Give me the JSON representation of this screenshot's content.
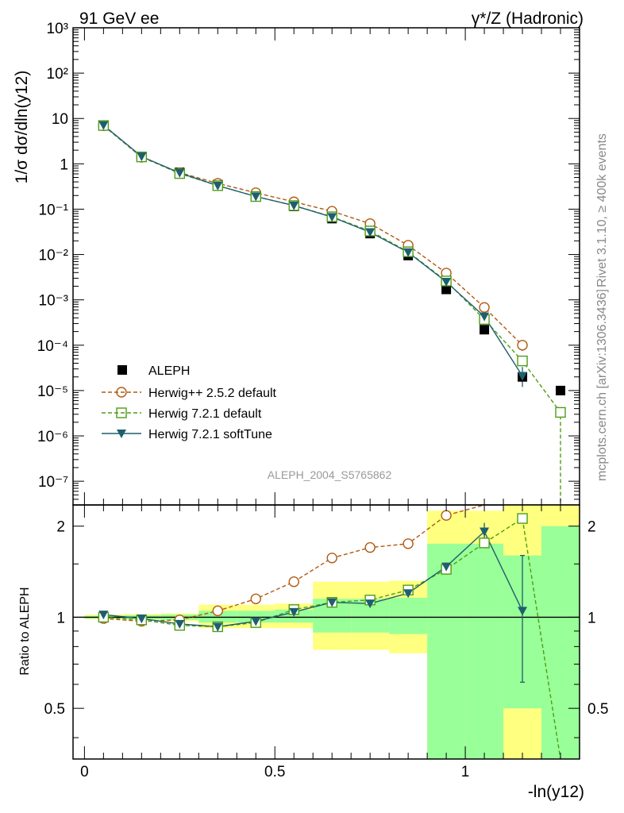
{
  "header": {
    "left": "91 GeV ee",
    "right": "γ*/Z (Hadronic)"
  },
  "side": {
    "rivet": "Rivet 3.1.10, ≥ 400k events",
    "mcplots": "mcplots.cern.ch [arXiv:1306.3436]"
  },
  "watermark": "ALEPH_2004_S5765862",
  "axes": {
    "ylabel_main": "1/σ  dσ/dln(y12)",
    "ylabel_ratio": "Ratio to ALEPH",
    "xlabel": "-ln(y12)",
    "main_ticks": [
      "10⁻⁷",
      "10⁻⁶",
      "10⁻⁵",
      "10⁻⁴",
      "10⁻³",
      "10⁻²",
      "10⁻¹",
      "1",
      "10",
      "10²",
      "10³"
    ],
    "ratio_ticks": [
      "0.5",
      "1",
      "2"
    ],
    "x_ticks": [
      "0",
      "0.5",
      "1"
    ]
  },
  "legend": {
    "position": "middle-left",
    "entries": [
      "ALEPH",
      "Herwig++ 2.5.2 default",
      "Herwig 7.2.1 default",
      "Herwig 7.2.1 softTune"
    ]
  },
  "colors": {
    "data": "#000000",
    "herwigpp": "#b05a12",
    "herwig7": "#4e9d16",
    "softtune": "#1e5e6e",
    "band_inner": "#99ff99",
    "band_outer": "#ffff80"
  },
  "chart_data": [
    {
      "type": "scatter",
      "scale": "log",
      "xlim": [
        -0.03,
        1.3
      ],
      "ylim": [
        3e-08,
        1000
      ],
      "x": [
        0.05,
        0.15,
        0.25,
        0.35,
        0.45,
        0.55,
        0.65,
        0.75,
        0.85,
        0.95,
        1.05,
        1.15,
        1.25
      ],
      "series": [
        {
          "name": "ALEPH",
          "values": [
            7.0,
            1.45,
            0.65,
            0.35,
            0.19,
            0.115,
            0.062,
            0.029,
            0.0095,
            0.0017,
            0.00022,
            2e-05,
            1e-05
          ]
        },
        {
          "name": "Herwig++ 2.5.2 default",
          "values": [
            6.9,
            1.4,
            0.64,
            0.37,
            0.23,
            0.145,
            0.09,
            0.048,
            0.016,
            0.0039,
            0.00068,
            0.0001,
            null
          ]
        },
        {
          "name": "Herwig 7.2.1 default",
          "values": [
            7.0,
            1.42,
            0.61,
            0.33,
            0.19,
            0.12,
            0.068,
            0.033,
            0.0115,
            0.0026,
            0.00037,
            4.5e-05,
            3.3e-06
          ]
        },
        {
          "name": "Herwig 7.2.1 softTune",
          "values": [
            7.1,
            1.45,
            0.63,
            0.33,
            0.19,
            0.12,
            0.067,
            0.031,
            0.0112,
            0.0025,
            0.00043,
            2.1e-05,
            null
          ]
        }
      ]
    },
    {
      "type": "scatter",
      "scale": "log",
      "xlim": [
        -0.03,
        1.3
      ],
      "ylim": [
        0.34,
        2.35
      ],
      "x": [
        0.05,
        0.15,
        0.25,
        0.35,
        0.45,
        0.55,
        0.65,
        0.75,
        0.85,
        0.95,
        1.05,
        1.15,
        1.25
      ],
      "reference": 1,
      "series": [
        {
          "name": "Herwig++ 2.5.2 default",
          "values": [
            0.99,
            0.97,
            0.98,
            1.05,
            1.15,
            1.31,
            1.57,
            1.7,
            1.75,
            2.17,
            2.5,
            null,
            null
          ]
        },
        {
          "name": "Herwig 7.2.1 default",
          "values": [
            1.0,
            0.98,
            0.94,
            0.93,
            0.96,
            1.06,
            1.12,
            1.14,
            1.23,
            1.44,
            1.76,
            2.12,
            0.33
          ]
        },
        {
          "name": "Herwig 7.2.1 softTune",
          "values": [
            1.02,
            0.99,
            0.95,
            0.93,
            0.97,
            1.04,
            1.12,
            1.11,
            1.2,
            1.47,
            1.92,
            1.05,
            null
          ]
        }
      ],
      "bands": {
        "x_edges": [
          0.0,
          0.1,
          0.2,
          0.3,
          0.4,
          0.5,
          0.6,
          0.7,
          0.8,
          0.9,
          1.0,
          1.1,
          1.2,
          1.3
        ],
        "inner": [
          [
            0.99,
            1.01
          ],
          [
            0.985,
            1.015
          ],
          [
            0.98,
            1.02
          ],
          [
            0.96,
            1.05
          ],
          [
            0.96,
            1.05
          ],
          [
            0.96,
            1.06
          ],
          [
            0.89,
            1.15
          ],
          [
            0.89,
            1.15
          ],
          [
            0.88,
            1.16
          ],
          [
            0.34,
            1.75
          ],
          [
            0.34,
            1.75
          ],
          [
            0.34,
            1.6
          ],
          [
            0.34,
            2.0
          ],
          [
            0.34,
            2.0
          ]
        ],
        "outer": [
          [
            0.985,
            1.02
          ],
          [
            0.98,
            1.025
          ],
          [
            0.97,
            1.03
          ],
          [
            0.92,
            1.1
          ],
          [
            0.92,
            1.1
          ],
          [
            0.92,
            1.11
          ],
          [
            0.78,
            1.31
          ],
          [
            0.78,
            1.31
          ],
          [
            0.76,
            1.32
          ],
          [
            0.34,
            2.25
          ],
          [
            0.34,
            2.25
          ],
          [
            0.34,
            2.35
          ],
          [
            0.34,
            2.35
          ],
          [
            0.34,
            2.35
          ]
        ]
      }
    }
  ]
}
